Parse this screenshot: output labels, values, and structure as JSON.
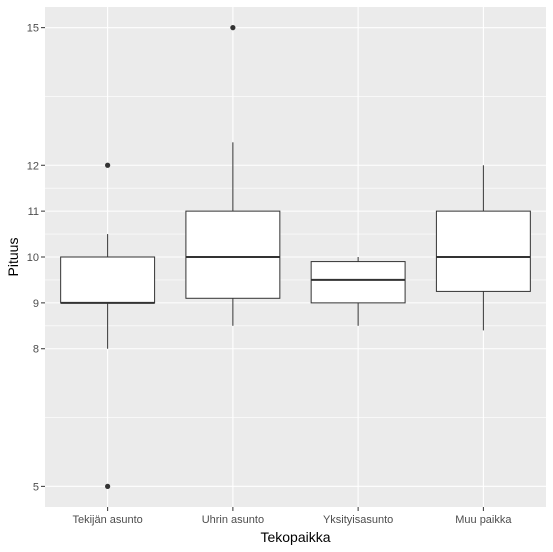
{
  "chart_data": {
    "type": "boxplot",
    "xlabel": "Tekopaikka",
    "ylabel": "Pituus",
    "categories": [
      "Tekijän asunto",
      "Uhrin asunto",
      "Yksityisasunto",
      "Muu paikka"
    ],
    "y_ticks": [
      5,
      8,
      9,
      10,
      11,
      12,
      15
    ],
    "ylim": [
      4.55,
      15.45
    ],
    "grid": true,
    "boxes": [
      {
        "category": "Tekijän asunto",
        "lower_whisker": 8.0,
        "q1": 9.0,
        "median": 9.0,
        "q3": 10.0,
        "upper_whisker": 10.5,
        "outliers": [
          12,
          5
        ]
      },
      {
        "category": "Uhrin asunto",
        "lower_whisker": 8.5,
        "q1": 9.1,
        "median": 10.0,
        "q3": 11.0,
        "upper_whisker": 12.5,
        "outliers": [
          15
        ]
      },
      {
        "category": "Yksityisasunto",
        "lower_whisker": 8.5,
        "q1": 9.0,
        "median": 9.5,
        "q3": 9.9,
        "upper_whisker": 10.0,
        "outliers": []
      },
      {
        "category": "Muu paikka",
        "lower_whisker": 8.4,
        "q1": 9.25,
        "median": 10.0,
        "q3": 11.0,
        "upper_whisker": 12.0,
        "outliers": []
      }
    ],
    "colors": {
      "panel": "#ebebeb",
      "grid": "#ffffff",
      "box_fill": "#ffffff",
      "box_line": "#333333",
      "point": "#333333"
    }
  }
}
